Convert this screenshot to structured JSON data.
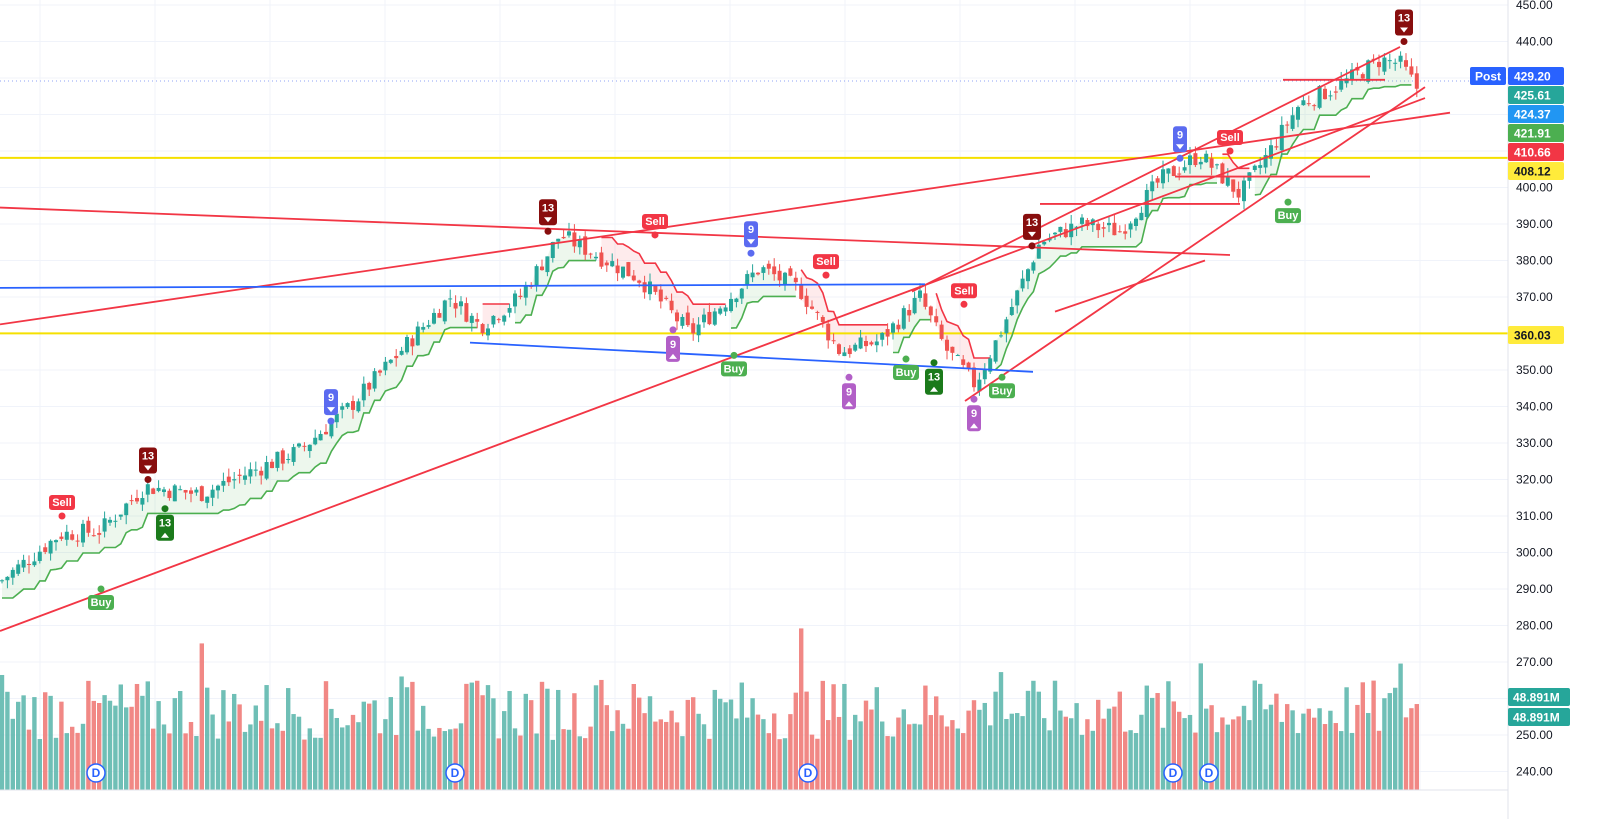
{
  "chart_data": {
    "type": "candlestick",
    "title": "",
    "xlabel": "",
    "ylabel": "",
    "price_axis": {
      "ylim": [
        235,
        450
      ],
      "ticks": [
        "240.00",
        "250.00",
        "260.00",
        "270.00",
        "280.00",
        "290.00",
        "300.00",
        "310.00",
        "320.00",
        "330.00",
        "340.00",
        "350.00",
        "360.00",
        "370.00",
        "380.00",
        "390.00",
        "400.00",
        "410.00",
        "420.00",
        "430.00",
        "440.00",
        "450.00"
      ]
    },
    "price_labels": [
      {
        "text": "429.20",
        "value": 429.2,
        "bg": "#2962ff",
        "fg": "#ffffff",
        "tag": "Post"
      },
      {
        "text": "425.61",
        "value": 425.61,
        "bg": "#26a69a",
        "fg": "#ffffff"
      },
      {
        "text": "424.37",
        "value": 424.37,
        "bg": "#2196f3",
        "fg": "#ffffff"
      },
      {
        "text": "421.91",
        "value": 421.91,
        "bg": "#4caf50",
        "fg": "#ffffff"
      },
      {
        "text": "410.66",
        "value": 410.66,
        "bg": "#f23645",
        "fg": "#ffffff"
      },
      {
        "text": "408.12",
        "value": 408.12,
        "bg": "#ffeb3b",
        "fg": "#131722"
      },
      {
        "text": "360.03",
        "value": 360.03,
        "bg": "#ffeb3b",
        "fg": "#131722"
      }
    ],
    "volume_labels": [
      {
        "text": "48.891M",
        "bg": "#26a69a"
      },
      {
        "text": "48.891M",
        "bg": "#26a69a"
      }
    ],
    "horizontal_levels": [
      {
        "value": 408.12,
        "color": "#f5e000"
      },
      {
        "value": 360.03,
        "color": "#f5e000"
      }
    ],
    "trend_lines": [
      {
        "color": "#f23645",
        "points": [
          [
            0,
            394.5
          ],
          [
            1230,
            381.5
          ]
        ]
      },
      {
        "color": "#f23645",
        "points": [
          [
            0,
            362.5
          ],
          [
            1450,
            420.5
          ]
        ]
      },
      {
        "color": "#f23645",
        "points": [
          [
            0,
            278.5
          ],
          [
            1425,
            424.5
          ]
        ]
      },
      {
        "color": "#f23645",
        "points": [
          [
            912,
            371.5
          ],
          [
            1400,
            438.5
          ]
        ]
      },
      {
        "color": "#f23645",
        "points": [
          [
            965,
            341.5
          ],
          [
            1425,
            427.5
          ]
        ]
      },
      {
        "color": "#f23645",
        "points": [
          [
            1055,
            366
          ],
          [
            1205,
            380
          ]
        ]
      },
      {
        "color": "#f23645",
        "points": [
          [
            1283,
            429.5
          ],
          [
            1385,
            429.5
          ]
        ]
      },
      {
        "color": "#f23645",
        "points": [
          [
            1175,
            403
          ],
          [
            1370,
            403
          ]
        ]
      },
      {
        "color": "#f23645",
        "points": [
          [
            1040,
            395.5
          ],
          [
            1240,
            395.5
          ]
        ]
      },
      {
        "color": "#2962ff",
        "points": [
          [
            0,
            372.5
          ],
          [
            925,
            373.5
          ]
        ]
      },
      {
        "color": "#2962ff",
        "points": [
          [
            470,
            357.5
          ],
          [
            1033,
            349.5
          ]
        ]
      }
    ],
    "signals": [
      {
        "text": "Sell",
        "type": "sell",
        "x": 62,
        "y": 310
      },
      {
        "text": "Buy",
        "type": "buy",
        "x": 101,
        "y": 290
      },
      {
        "text": "13",
        "type": "td13-sell",
        "x": 148,
        "y": 320
      },
      {
        "text": "13",
        "type": "td13-buy",
        "x": 165,
        "y": 312
      },
      {
        "text": "9",
        "type": "td9-sell",
        "x": 331,
        "y": 336
      },
      {
        "text": "13",
        "type": "td13-sell",
        "x": 548,
        "y": 388
      },
      {
        "text": "Sell",
        "type": "sell",
        "x": 655,
        "y": 387
      },
      {
        "text": "9",
        "type": "td9-buy",
        "x": 673,
        "y": 361
      },
      {
        "text": "Buy",
        "type": "buy",
        "x": 734,
        "y": 354
      },
      {
        "text": "9",
        "type": "td9-sell",
        "x": 751,
        "y": 382
      },
      {
        "text": "Sell",
        "type": "sell",
        "x": 826,
        "y": 376
      },
      {
        "text": "9",
        "type": "td9-buy",
        "x": 849,
        "y": 348
      },
      {
        "text": "Buy",
        "type": "buy",
        "x": 906,
        "y": 353
      },
      {
        "text": "13",
        "type": "td13-buy",
        "x": 934,
        "y": 352
      },
      {
        "text": "Sell",
        "type": "sell",
        "x": 964,
        "y": 368
      },
      {
        "text": "9",
        "type": "td9-buy",
        "x": 974,
        "y": 342
      },
      {
        "text": "Buy",
        "type": "buy",
        "x": 1002,
        "y": 348
      },
      {
        "text": "13",
        "type": "td13-sell",
        "x": 1032,
        "y": 384
      },
      {
        "text": "9",
        "type": "td9-sell",
        "x": 1180,
        "y": 408
      },
      {
        "text": "Sell",
        "type": "sell",
        "x": 1230,
        "y": 410
      },
      {
        "text": "Buy",
        "type": "buy",
        "x": 1288,
        "y": 396
      },
      {
        "text": "13",
        "type": "td13-sell",
        "x": 1404,
        "y": 440
      }
    ],
    "dividend_markers": [
      "D",
      "D",
      "D",
      "D",
      "D"
    ],
    "key_closes": [
      {
        "x": 0,
        "y": 292
      },
      {
        "x": 60,
        "y": 305
      },
      {
        "x": 100,
        "y": 306
      },
      {
        "x": 145,
        "y": 318
      },
      {
        "x": 200,
        "y": 316
      },
      {
        "x": 250,
        "y": 322
      },
      {
        "x": 300,
        "y": 328
      },
      {
        "x": 350,
        "y": 340
      },
      {
        "x": 400,
        "y": 355
      },
      {
        "x": 450,
        "y": 370
      },
      {
        "x": 480,
        "y": 362
      },
      {
        "x": 520,
        "y": 370
      },
      {
        "x": 560,
        "y": 387
      },
      {
        "x": 600,
        "y": 381
      },
      {
        "x": 640,
        "y": 375
      },
      {
        "x": 690,
        "y": 360
      },
      {
        "x": 730,
        "y": 370
      },
      {
        "x": 760,
        "y": 378
      },
      {
        "x": 800,
        "y": 372
      },
      {
        "x": 840,
        "y": 355
      },
      {
        "x": 880,
        "y": 358
      },
      {
        "x": 920,
        "y": 370
      },
      {
        "x": 945,
        "y": 356
      },
      {
        "x": 975,
        "y": 346
      },
      {
        "x": 1000,
        "y": 360
      },
      {
        "x": 1040,
        "y": 385
      },
      {
        "x": 1080,
        "y": 390
      },
      {
        "x": 1120,
        "y": 388
      },
      {
        "x": 1160,
        "y": 402
      },
      {
        "x": 1200,
        "y": 409
      },
      {
        "x": 1240,
        "y": 398
      },
      {
        "x": 1270,
        "y": 410
      },
      {
        "x": 1300,
        "y": 423
      },
      {
        "x": 1340,
        "y": 428
      },
      {
        "x": 1380,
        "y": 435
      },
      {
        "x": 1400,
        "y": 434
      },
      {
        "x": 1420,
        "y": 426
      }
    ]
  },
  "colors": {
    "up": "#26a69a",
    "down": "#ef5350",
    "up_volume": "#26a69a",
    "down_volume": "#ef5350",
    "stop_green": "#4caf50",
    "stop_red": "#f23645",
    "grid": "#f0f3fa",
    "axis_text": "#131722"
  }
}
